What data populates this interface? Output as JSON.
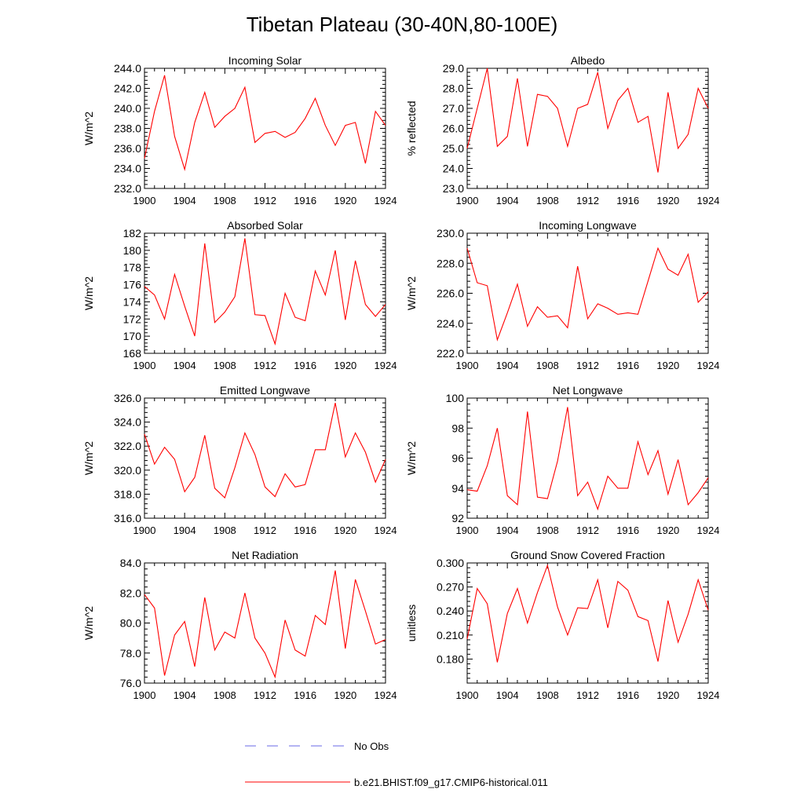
{
  "figure": {
    "title": "Tibetan Plateau (30-40N,80-100E)",
    "legend": [
      {
        "label": "No Obs",
        "color": "#6a6ae6",
        "style": "dashed"
      },
      {
        "label": "b.e21.BHIST.f09_g17.CMIP6-historical.011",
        "color": "#ff0000",
        "style": "solid"
      }
    ]
  },
  "chart_data": [
    {
      "type": "line",
      "title": "Incoming Solar",
      "ylabel": "W/m^2",
      "xlabel": "",
      "xlim": [
        1900,
        1924
      ],
      "ylim": [
        232,
        244
      ],
      "xticks": [
        1900,
        1904,
        1908,
        1912,
        1916,
        1920,
        1924
      ],
      "yticks": [
        232,
        234,
        236,
        238,
        240,
        242,
        244
      ],
      "ytick_labels": [
        "232.0",
        "234.0",
        "236.0",
        "238.0",
        "240.0",
        "242.0",
        "244.0"
      ],
      "grid": false,
      "series": [
        {
          "color": "#ff0000",
          "x": [
            1900,
            1901,
            1902,
            1903,
            1904,
            1905,
            1906,
            1907,
            1908,
            1909,
            1910,
            1911,
            1912,
            1913,
            1914,
            1915,
            1916,
            1917,
            1918,
            1919,
            1920,
            1921,
            1922,
            1923,
            1924
          ],
          "y": [
            235.0,
            239.7,
            243.3,
            237.2,
            233.9,
            238.6,
            241.6,
            238.1,
            239.2,
            240.0,
            242.1,
            236.6,
            237.5,
            237.7,
            237.1,
            237.6,
            239.0,
            241.0,
            238.3,
            236.3,
            238.3,
            238.6,
            234.5,
            239.7,
            238.3
          ]
        }
      ]
    },
    {
      "type": "line",
      "title": "Albedo",
      "ylabel": "% reflected",
      "xlabel": "",
      "xlim": [
        1900,
        1924
      ],
      "ylim": [
        23,
        29
      ],
      "xticks": [
        1900,
        1904,
        1908,
        1912,
        1916,
        1920,
        1924
      ],
      "yticks": [
        23,
        24,
        25,
        26,
        27,
        28,
        29
      ],
      "ytick_labels": [
        "23.0",
        "24.0",
        "25.0",
        "26.0",
        "27.0",
        "28.0",
        "29.0"
      ],
      "grid": false,
      "series": [
        {
          "color": "#ff0000",
          "x": [
            1900,
            1901,
            1902,
            1903,
            1904,
            1905,
            1906,
            1907,
            1908,
            1909,
            1910,
            1911,
            1912,
            1913,
            1914,
            1915,
            1916,
            1917,
            1918,
            1919,
            1920,
            1921,
            1922,
            1923,
            1924
          ],
          "y": [
            25.0,
            27.0,
            29.0,
            25.1,
            25.6,
            28.5,
            25.1,
            27.7,
            27.6,
            27.0,
            25.1,
            27.0,
            27.2,
            28.8,
            26.0,
            27.4,
            28.0,
            26.3,
            26.6,
            23.8,
            27.8,
            25.0,
            25.7,
            28.0,
            27.0
          ]
        }
      ]
    },
    {
      "type": "line",
      "title": "Absorbed Solar",
      "ylabel": "W/m^2",
      "xlabel": "",
      "xlim": [
        1900,
        1924
      ],
      "ylim": [
        168,
        182
      ],
      "xticks": [
        1900,
        1904,
        1908,
        1912,
        1916,
        1920,
        1924
      ],
      "yticks": [
        168,
        170,
        172,
        174,
        176,
        178,
        180,
        182
      ],
      "ytick_labels": [
        "168",
        "170",
        "172",
        "174",
        "176",
        "178",
        "180",
        "182"
      ],
      "grid": false,
      "series": [
        {
          "color": "#ff0000",
          "x": [
            1900,
            1901,
            1902,
            1903,
            1904,
            1905,
            1906,
            1907,
            1908,
            1909,
            1910,
            1911,
            1912,
            1913,
            1914,
            1915,
            1916,
            1917,
            1918,
            1919,
            1920,
            1921,
            1922,
            1923,
            1924
          ],
          "y": [
            175.8,
            174.8,
            172.0,
            177.2,
            173.5,
            170.0,
            180.8,
            171.6,
            172.8,
            174.6,
            181.4,
            172.5,
            172.4,
            169.1,
            175.0,
            172.2,
            171.8,
            177.6,
            174.8,
            180.0,
            171.9,
            178.8,
            173.7,
            172.3,
            173.7
          ]
        }
      ]
    },
    {
      "type": "line",
      "title": "Incoming Longwave",
      "ylabel": "W/m^2",
      "xlabel": "",
      "xlim": [
        1900,
        1924
      ],
      "ylim": [
        222,
        230
      ],
      "xticks": [
        1900,
        1904,
        1908,
        1912,
        1916,
        1920,
        1924
      ],
      "yticks": [
        222,
        224,
        226,
        228,
        230
      ],
      "ytick_labels": [
        "222.0",
        "224.0",
        "226.0",
        "228.0",
        "230.0"
      ],
      "grid": false,
      "series": [
        {
          "color": "#ff0000",
          "x": [
            1900,
            1901,
            1902,
            1903,
            1904,
            1905,
            1906,
            1907,
            1908,
            1909,
            1910,
            1911,
            1912,
            1913,
            1914,
            1915,
            1916,
            1917,
            1918,
            1919,
            1920,
            1921,
            1922,
            1923,
            1924
          ],
          "y": [
            229.0,
            226.7,
            226.5,
            222.9,
            224.7,
            226.6,
            223.8,
            225.1,
            224.4,
            224.5,
            223.7,
            227.8,
            224.3,
            225.3,
            225.0,
            224.6,
            224.7,
            224.6,
            226.8,
            229.0,
            227.6,
            227.2,
            228.6,
            225.4,
            226.1
          ]
        }
      ]
    },
    {
      "type": "line",
      "title": "Emitted Longwave",
      "ylabel": "W/m^2",
      "xlabel": "",
      "xlim": [
        1900,
        1924
      ],
      "ylim": [
        316,
        326
      ],
      "xticks": [
        1900,
        1904,
        1908,
        1912,
        1916,
        1920,
        1924
      ],
      "yticks": [
        316,
        318,
        320,
        322,
        324,
        326
      ],
      "ytick_labels": [
        "316.0",
        "318.0",
        "320.0",
        "322.0",
        "324.0",
        "326.0"
      ],
      "grid": false,
      "series": [
        {
          "color": "#ff0000",
          "x": [
            1900,
            1901,
            1902,
            1903,
            1904,
            1905,
            1906,
            1907,
            1908,
            1909,
            1910,
            1911,
            1912,
            1913,
            1914,
            1915,
            1916,
            1917,
            1918,
            1919,
            1920,
            1921,
            1922,
            1923,
            1924
          ],
          "y": [
            323.0,
            320.5,
            321.9,
            320.9,
            318.2,
            319.4,
            322.9,
            318.5,
            317.7,
            320.2,
            323.1,
            321.3,
            318.6,
            317.8,
            319.7,
            318.6,
            318.8,
            321.7,
            321.7,
            325.6,
            321.1,
            323.1,
            321.5,
            319.0,
            320.9
          ]
        }
      ]
    },
    {
      "type": "line",
      "title": "Net Longwave",
      "ylabel": "W/m^2",
      "xlabel": "",
      "xlim": [
        1900,
        1924
      ],
      "ylim": [
        92,
        100
      ],
      "xticks": [
        1900,
        1904,
        1908,
        1912,
        1916,
        1920,
        1924
      ],
      "yticks": [
        92,
        94,
        96,
        98,
        100
      ],
      "ytick_labels": [
        "92",
        "94",
        "96",
        "98",
        "100"
      ],
      "grid": false,
      "series": [
        {
          "color": "#ff0000",
          "x": [
            1900,
            1901,
            1902,
            1903,
            1904,
            1905,
            1906,
            1907,
            1908,
            1909,
            1910,
            1911,
            1912,
            1913,
            1914,
            1915,
            1916,
            1917,
            1918,
            1919,
            1920,
            1921,
            1922,
            1923,
            1924
          ],
          "y": [
            93.9,
            93.8,
            95.5,
            98.0,
            93.5,
            92.9,
            99.1,
            93.4,
            93.3,
            95.8,
            99.4,
            93.5,
            94.4,
            92.6,
            94.8,
            94.0,
            94.0,
            97.1,
            94.9,
            96.5,
            93.6,
            95.9,
            92.9,
            93.7,
            94.7
          ]
        }
      ]
    },
    {
      "type": "line",
      "title": "Net Radiation",
      "ylabel": "W/m^2",
      "xlabel": "",
      "xlim": [
        1900,
        1924
      ],
      "ylim": [
        76,
        84
      ],
      "xticks": [
        1900,
        1904,
        1908,
        1912,
        1916,
        1920,
        1924
      ],
      "yticks": [
        76,
        78,
        80,
        82,
        84
      ],
      "ytick_labels": [
        "76.0",
        "78.0",
        "80.0",
        "82.0",
        "84.0"
      ],
      "grid": false,
      "series": [
        {
          "color": "#ff0000",
          "x": [
            1900,
            1901,
            1902,
            1903,
            1904,
            1905,
            1906,
            1907,
            1908,
            1909,
            1910,
            1911,
            1912,
            1913,
            1914,
            1915,
            1916,
            1917,
            1918,
            1919,
            1920,
            1921,
            1922,
            1923,
            1924
          ],
          "y": [
            81.9,
            81.0,
            76.5,
            79.2,
            80.1,
            77.1,
            81.7,
            78.2,
            79.4,
            79.0,
            82.0,
            79.0,
            78.0,
            76.4,
            80.2,
            78.2,
            77.8,
            80.5,
            79.9,
            83.5,
            78.3,
            82.9,
            80.8,
            78.6,
            78.9
          ]
        }
      ]
    },
    {
      "type": "line",
      "title": "Ground Snow Covered Fraction",
      "ylabel": "unitless",
      "xlabel": "",
      "xlim": [
        1900,
        1924
      ],
      "ylim": [
        0.15,
        0.3
      ],
      "xticks": [
        1900,
        1904,
        1908,
        1912,
        1916,
        1920,
        1924
      ],
      "yticks": [
        0.18,
        0.21,
        0.24,
        0.27,
        0.3
      ],
      "ytick_labels": [
        "0.180",
        "0.210",
        "0.240",
        "0.270",
        "0.300"
      ],
      "grid": false,
      "series": [
        {
          "color": "#ff0000",
          "x": [
            1900,
            1901,
            1902,
            1903,
            1904,
            1905,
            1906,
            1907,
            1908,
            1909,
            1910,
            1911,
            1912,
            1913,
            1914,
            1915,
            1916,
            1917,
            1918,
            1919,
            1920,
            1921,
            1922,
            1923,
            1924
          ],
          "y": [
            0.205,
            0.268,
            0.249,
            0.176,
            0.237,
            0.268,
            0.225,
            0.263,
            0.297,
            0.245,
            0.21,
            0.244,
            0.243,
            0.279,
            0.219,
            0.277,
            0.266,
            0.233,
            0.228,
            0.177,
            0.253,
            0.201,
            0.236,
            0.279,
            0.241
          ]
        }
      ]
    }
  ]
}
